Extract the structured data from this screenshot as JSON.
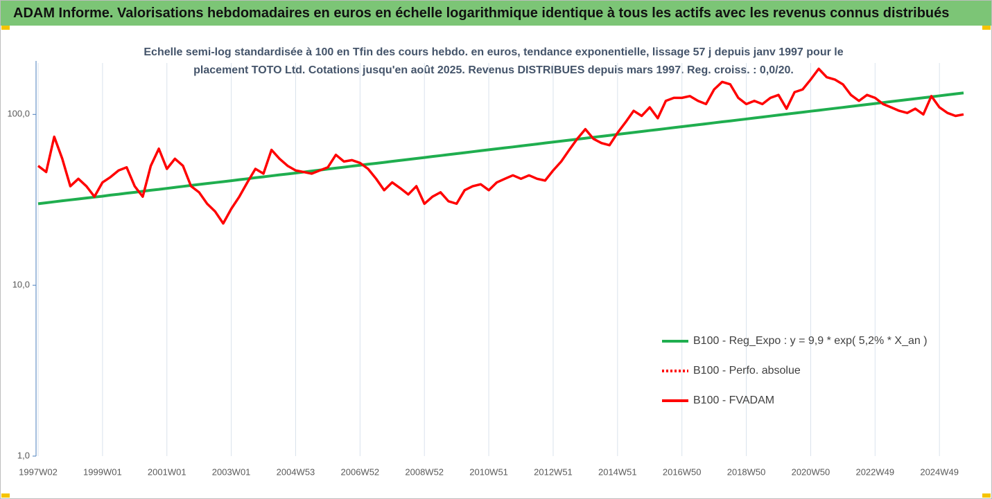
{
  "chart_data": {
    "type": "line",
    "title": "ADAM Informe. Valorisations hebdomadaires en euros en échelle logarithmique identique à tous les actifs avec les revenus connus distribués",
    "subtitle": [
      "Echelle semi-log standardisée à 100 en Tfin des cours hebdo. en euros, tendance exponentielle, lissage 57 j depuis janv 1997 pour le",
      "placement TOTO Ltd. Cotations jusqu'en août 2025.  Revenus DISTRIBUES depuis mars 1997. Reg. croiss. : 0,0/20."
    ],
    "log_scale": true,
    "xgrid": true,
    "ylim": [
      1,
      200
    ],
    "yticks": [
      {
        "value": 1,
        "label": "1,0"
      },
      {
        "value": 10,
        "label": "10,0"
      },
      {
        "value": 100,
        "label": "100,0"
      }
    ],
    "categories": [
      "1997W02",
      null,
      null,
      null,
      null,
      null,
      null,
      null,
      "1999W01",
      null,
      null,
      null,
      null,
      null,
      null,
      null,
      "2001W01",
      null,
      null,
      null,
      null,
      null,
      null,
      null,
      "2003W01",
      null,
      null,
      null,
      null,
      null,
      null,
      null,
      "2004W53",
      null,
      null,
      null,
      null,
      null,
      null,
      null,
      "2006W52",
      null,
      null,
      null,
      null,
      null,
      null,
      null,
      "2008W52",
      null,
      null,
      null,
      null,
      null,
      null,
      null,
      "2010W51",
      null,
      null,
      null,
      null,
      null,
      null,
      null,
      "2012W51",
      null,
      null,
      null,
      null,
      null,
      null,
      null,
      "2014W51",
      null,
      null,
      null,
      null,
      null,
      null,
      null,
      "2016W50",
      null,
      null,
      null,
      null,
      null,
      null,
      null,
      "2018W50",
      null,
      null,
      null,
      null,
      null,
      null,
      null,
      "2020W50",
      null,
      null,
      null,
      null,
      null,
      null,
      null,
      "2022W49",
      null,
      null,
      null,
      null,
      null,
      null,
      null,
      "2024W49",
      null,
      null,
      null
    ],
    "series": [
      {
        "name": "B100 - Reg_Expo : y = 9,9 * exp( 5,2% *  X_an )",
        "color": "#1fae4f",
        "dash": "solid",
        "values": [
          30.0,
          30.4,
          30.8,
          31.2,
          31.6,
          32.0,
          32.4,
          32.8,
          33.2,
          33.7,
          34.1,
          34.6,
          35.0,
          35.5,
          36.0,
          36.4,
          36.9,
          37.4,
          37.9,
          38.4,
          38.9,
          39.4,
          39.9,
          40.4,
          40.9,
          41.5,
          42.0,
          42.6,
          43.1,
          43.7,
          44.3,
          44.8,
          45.4,
          46.0,
          46.6,
          47.2,
          47.9,
          48.5,
          49.1,
          49.8,
          50.4,
          51.1,
          51.7,
          52.4,
          53.1,
          53.8,
          54.5,
          55.2,
          55.9,
          56.7,
          57.4,
          58.2,
          58.9,
          59.7,
          60.5,
          61.3,
          62.1,
          62.9,
          63.7,
          64.5,
          65.4,
          66.2,
          67.1,
          68.0,
          68.9,
          69.8,
          70.7,
          71.6,
          72.5,
          73.5,
          74.4,
          75.4,
          76.4,
          77.4,
          78.4,
          79.4,
          80.5,
          81.5,
          82.6,
          83.7,
          84.8,
          85.9,
          87.0,
          88.1,
          89.3,
          90.5,
          91.6,
          92.8,
          94.0,
          95.3,
          96.5,
          97.8,
          99.1,
          100.4,
          101.7,
          103.0,
          104.4,
          105.7,
          107.1,
          108.5,
          109.9,
          111.4,
          112.8,
          114.3,
          115.8,
          117.3,
          118.9,
          120.4,
          122.0,
          123.6,
          125.2,
          126.8,
          128.5,
          130.2,
          131.9,
          133.6
        ]
      },
      {
        "name": "B100 - Perfo. absolue",
        "color": "#ff0000",
        "dash": "dotted"
      },
      {
        "name": "B100 - FVADAM",
        "color": "#ff0000",
        "dash": "solid",
        "values": [
          50,
          46,
          74,
          55,
          38,
          42,
          38,
          33,
          40,
          43,
          47,
          49,
          38,
          33,
          50,
          63,
          48,
          55,
          50,
          38,
          35,
          30,
          27,
          23,
          28,
          33,
          40,
          48,
          45,
          62,
          55,
          50,
          47,
          46,
          45,
          47,
          49,
          58,
          53,
          54,
          52,
          48,
          42,
          36,
          40,
          37,
          34,
          38,
          30,
          33,
          35,
          31,
          30,
          36,
          38,
          39,
          36,
          40,
          42,
          44,
          42,
          44,
          42,
          41,
          47,
          53,
          62,
          72,
          82,
          72,
          68,
          66,
          78,
          90,
          105,
          98,
          110,
          95,
          120,
          125,
          125,
          128,
          120,
          115,
          140,
          155,
          150,
          125,
          115,
          120,
          115,
          125,
          130,
          108,
          135,
          140,
          160,
          185,
          165,
          160,
          150,
          130,
          120,
          130,
          125,
          115,
          110,
          105,
          102,
          108,
          100,
          128,
          110,
          102,
          98,
          100
        ]
      }
    ]
  }
}
